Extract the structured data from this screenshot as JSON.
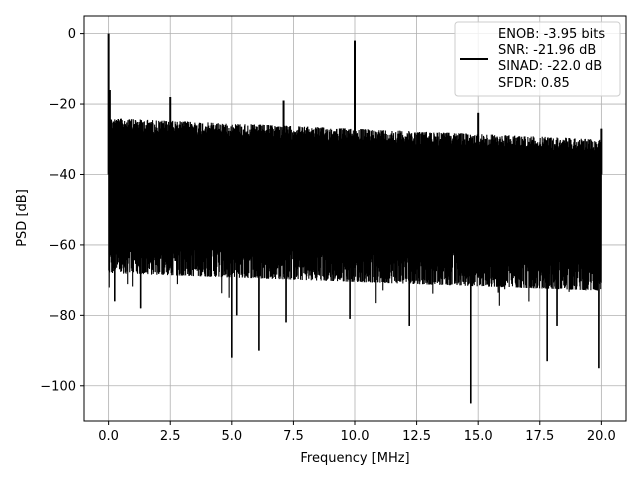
{
  "chart_data": {
    "type": "line",
    "xlabel": "Frequency [MHz]",
    "ylabel": "PSD [dB]",
    "xlim": [
      -1.0,
      21.0
    ],
    "ylim": [
      -110,
      5
    ],
    "grid": true,
    "line_color": "#000000",
    "x_ticks": [
      0.0,
      2.5,
      5.0,
      7.5,
      10.0,
      12.5,
      15.0,
      17.5,
      20.0
    ],
    "x_tick_labels": [
      "0.0",
      "2.5",
      "5.0",
      "7.5",
      "10.0",
      "12.5",
      "15.0",
      "17.5",
      "20.0"
    ],
    "y_ticks": [
      0,
      -20,
      -40,
      -60,
      -80,
      -100
    ],
    "y_tick_labels": [
      "0",
      "−20",
      "−40",
      "−60",
      "−80",
      "−100"
    ],
    "legend": {
      "placement": "top-right",
      "entries": [
        "ENOB: -3.95 bits",
        "SNR: -21.96 dB",
        "SINAD: -22.0 dB",
        "SFDR: 0.85"
      ]
    },
    "series": [
      {
        "x_range": [
          0.0,
          20.0
        ],
        "noise_top_start": -23,
        "noise_top_end": -29,
        "noise_bottom_start": -68,
        "noise_bottom_end": -73,
        "spikes": [
          {
            "x": 0.0,
            "y": 0
          },
          {
            "x": 0.05,
            "y": -16
          },
          {
            "x": 2.5,
            "y": -18
          },
          {
            "x": 7.1,
            "y": -19
          },
          {
            "x": 10.0,
            "y": -2
          },
          {
            "x": 15.0,
            "y": -22.5
          },
          {
            "x": 20.0,
            "y": -27
          }
        ],
        "dips": [
          {
            "x": 0.25,
            "y": -76
          },
          {
            "x": 1.3,
            "y": -78
          },
          {
            "x": 5.0,
            "y": -92
          },
          {
            "x": 5.2,
            "y": -80
          },
          {
            "x": 6.1,
            "y": -90
          },
          {
            "x": 7.2,
            "y": -82
          },
          {
            "x": 9.8,
            "y": -81
          },
          {
            "x": 12.2,
            "y": -83
          },
          {
            "x": 14.7,
            "y": -105
          },
          {
            "x": 17.8,
            "y": -93
          },
          {
            "x": 18.2,
            "y": -83
          },
          {
            "x": 19.9,
            "y": -95
          }
        ]
      }
    ]
  }
}
